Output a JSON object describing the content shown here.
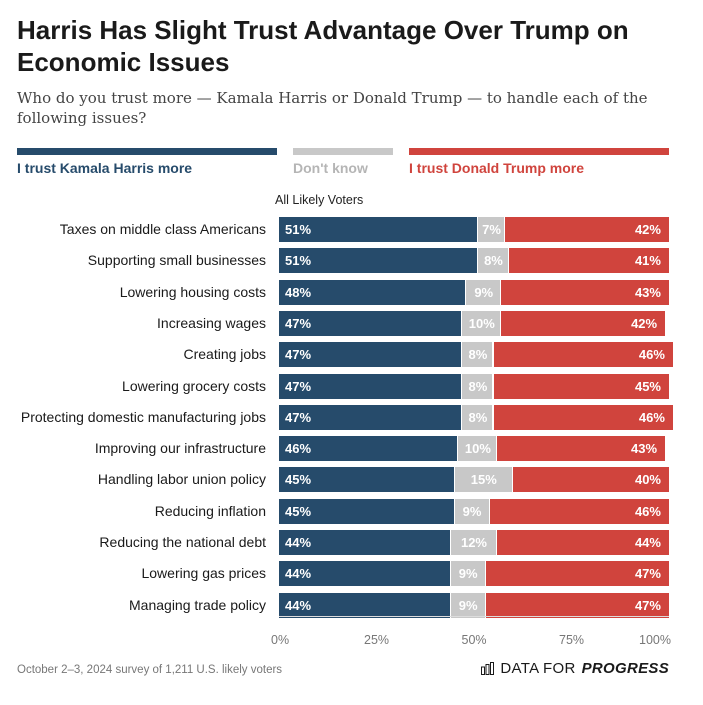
{
  "header": {
    "title": "Harris Has Slight Trust Advantage Over Trump on Economic Issues",
    "subtitle": "Who do you trust more — Kamala Harris or Donald Trump — to handle each of the following issues?"
  },
  "legend": {
    "harris": "I trust Kamala Harris more",
    "dontknow": "Don't know",
    "trump": "I trust Donald Trump more"
  },
  "panel_label": "All Likely Voters",
  "footer": {
    "note": "October 2–3, 2024 survey of 1,211 U.S. likely voters",
    "logo_prefix": "DATA FOR",
    "logo_strong": "PROGRESS"
  },
  "colors": {
    "harris": "#264b6b",
    "dontknow": "#c8c8c8",
    "trump": "#d0443d"
  },
  "chart_data": {
    "type": "bar",
    "orientation": "horizontal",
    "stacked": true,
    "title": "Harris Has Slight Trust Advantage Over Trump on Economic Issues",
    "xlim": [
      0,
      100
    ],
    "xticks": [
      "0%",
      "25%",
      "50%",
      "75%",
      "100%"
    ],
    "xtick_values": [
      0,
      25,
      50,
      75,
      100
    ],
    "categories": [
      "Taxes on middle class Americans",
      "Supporting small businesses",
      "Lowering housing costs",
      "Increasing wages",
      "Creating jobs",
      "Lowering grocery costs",
      "Protecting domestic manufacturing jobs",
      "Improving our infrastructure",
      "Handling labor union policy",
      "Reducing inflation",
      "Reducing the national debt",
      "Lowering gas prices",
      "Managing trade policy"
    ],
    "series": [
      {
        "name": "I trust Kamala Harris more",
        "values": [
          51,
          51,
          48,
          47,
          47,
          47,
          47,
          46,
          45,
          45,
          44,
          44,
          44
        ]
      },
      {
        "name": "Don't know",
        "values": [
          7,
          8,
          9,
          10,
          8,
          8,
          8,
          10,
          15,
          9,
          12,
          9,
          9
        ]
      },
      {
        "name": "I trust Donald Trump more",
        "values": [
          42,
          41,
          43,
          42,
          46,
          45,
          46,
          43,
          40,
          46,
          44,
          47,
          47
        ]
      }
    ]
  }
}
